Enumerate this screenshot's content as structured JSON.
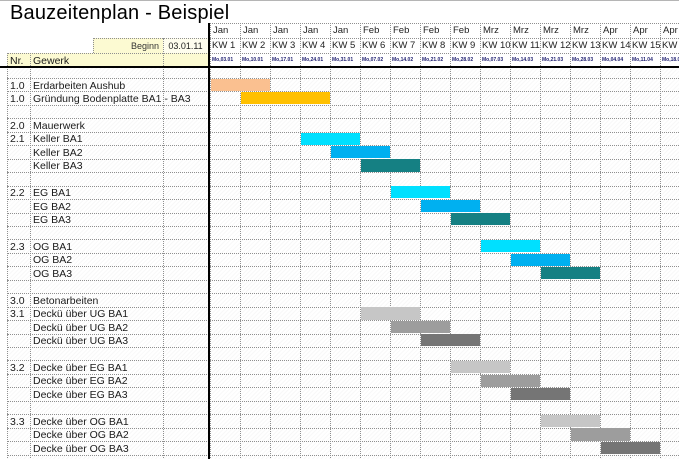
{
  "title": "Bauzeitenplan - Beispiel",
  "begin": {
    "label": "Beginn",
    "value": "03.01.11"
  },
  "table_header": {
    "nr": "Nr.",
    "gewerk": "Gewerk"
  },
  "colors": {
    "header_fill": "#FCFAD2",
    "begin_value_fill": "#FEFDEE",
    "bar_peach": "#FAC090",
    "bar_gold": "#FFC000",
    "bar_cyan": "#00E0FF",
    "bar_blue": "#00B0F0",
    "bar_teal": "#158083",
    "bar_gray_light": "#C6C6C6",
    "bar_gray_mid": "#9D9D9D",
    "bar_gray_dark": "#757575"
  },
  "chart_data": {
    "type": "gantt",
    "title": "Bauzeitenplan - Beispiel",
    "start_date": "03.01.11",
    "time_axis": {
      "unit": "Kalenderwoche",
      "columns": [
        {
          "month": "Jan",
          "week": "KW 1",
          "start": "Mo,03.01"
        },
        {
          "month": "Jan",
          "week": "KW 2",
          "start": "Mo,10.01"
        },
        {
          "month": "Jan",
          "week": "KW 3",
          "start": "Mo,17.01"
        },
        {
          "month": "Jan",
          "week": "KW 4",
          "start": "Mo,24.01"
        },
        {
          "month": "Jan",
          "week": "KW 5",
          "start": "Mo,31.01"
        },
        {
          "month": "Feb",
          "week": "KW 6",
          "start": "Mo,07.02"
        },
        {
          "month": "Feb",
          "week": "KW 7",
          "start": "Mo,14.02"
        },
        {
          "month": "Feb",
          "week": "KW 8",
          "start": "Mo,21.02"
        },
        {
          "month": "Feb",
          "week": "KW 9",
          "start": "Mo,28.02"
        },
        {
          "month": "Mrz",
          "week": "KW 10",
          "start": "Mo,07.03"
        },
        {
          "month": "Mrz",
          "week": "KW 11",
          "start": "Mo,14.03"
        },
        {
          "month": "Mrz",
          "week": "KW 12",
          "start": "Mo,21.03"
        },
        {
          "month": "Mrz",
          "week": "KW 13",
          "start": "Mo,28.03"
        },
        {
          "month": "Apr",
          "week": "KW 14",
          "start": "Mo,04.04"
        },
        {
          "month": "Apr",
          "week": "KW 15",
          "start": "Mo,11.04"
        },
        {
          "month": "Apr",
          "week": "KW 16",
          "start": "Mo,18.04"
        }
      ]
    },
    "rows": [
      {
        "nr": "1.0",
        "name": "Erdarbeiten Aushub",
        "bar": {
          "from_week": 1,
          "to_week": 2,
          "color": "bar_peach"
        }
      },
      {
        "nr": "1.0",
        "name": "Gründung Bodenplatte BA1 - BA3",
        "bar": {
          "from_week": 2,
          "to_week": 4,
          "color": "bar_gold"
        }
      },
      {
        "nr": "",
        "name": ""
      },
      {
        "nr": "2.0",
        "name": "Mauerwerk"
      },
      {
        "nr": "2.1",
        "name": "Keller BA1",
        "bar": {
          "from_week": 4,
          "to_week": 5,
          "color": "bar_cyan"
        }
      },
      {
        "nr": "",
        "name": "Keller BA2",
        "bar": {
          "from_week": 5,
          "to_week": 6,
          "color": "bar_blue"
        }
      },
      {
        "nr": "",
        "name": "Keller BA3",
        "bar": {
          "from_week": 6,
          "to_week": 7,
          "color": "bar_teal"
        }
      },
      {
        "nr": "",
        "name": ""
      },
      {
        "nr": "2.2",
        "name": "EG BA1",
        "bar": {
          "from_week": 7,
          "to_week": 8,
          "color": "bar_cyan"
        }
      },
      {
        "nr": "",
        "name": "EG BA2",
        "bar": {
          "from_week": 8,
          "to_week": 9,
          "color": "bar_blue"
        }
      },
      {
        "nr": "",
        "name": "EG BA3",
        "bar": {
          "from_week": 9,
          "to_week": 10,
          "color": "bar_teal"
        }
      },
      {
        "nr": "",
        "name": ""
      },
      {
        "nr": "2.3",
        "name": "OG BA1",
        "bar": {
          "from_week": 10,
          "to_week": 11,
          "color": "bar_cyan"
        }
      },
      {
        "nr": "",
        "name": "OG BA2",
        "bar": {
          "from_week": 11,
          "to_week": 12,
          "color": "bar_blue"
        }
      },
      {
        "nr": "",
        "name": "OG BA3",
        "bar": {
          "from_week": 12,
          "to_week": 13,
          "color": "bar_teal"
        }
      },
      {
        "nr": "",
        "name": ""
      },
      {
        "nr": "3.0",
        "name": "Betonarbeiten"
      },
      {
        "nr": "3.1",
        "name": "Deckü über UG BA1",
        "bar": {
          "from_week": 6,
          "to_week": 7,
          "color": "bar_gray_light"
        }
      },
      {
        "nr": "",
        "name": "Deckü über UG BA2",
        "bar": {
          "from_week": 7,
          "to_week": 8,
          "color": "bar_gray_mid"
        }
      },
      {
        "nr": "",
        "name": "Deckü über UG BA3",
        "bar": {
          "from_week": 8,
          "to_week": 9,
          "color": "bar_gray_dark"
        }
      },
      {
        "nr": "",
        "name": ""
      },
      {
        "nr": "3.2",
        "name": "Decke über EG BA1",
        "bar": {
          "from_week": 9,
          "to_week": 10,
          "color": "bar_gray_light"
        }
      },
      {
        "nr": "",
        "name": "Decke über EG BA2",
        "bar": {
          "from_week": 10,
          "to_week": 11,
          "color": "bar_gray_mid"
        }
      },
      {
        "nr": "",
        "name": "Decke über EG BA3",
        "bar": {
          "from_week": 11,
          "to_week": 12,
          "color": "bar_gray_dark"
        }
      },
      {
        "nr": "",
        "name": ""
      },
      {
        "nr": "3.3",
        "name": "Decke über OG BA1",
        "bar": {
          "from_week": 12,
          "to_week": 13,
          "color": "bar_gray_light"
        }
      },
      {
        "nr": "",
        "name": "Decke über OG BA2",
        "bar": {
          "from_week": 13,
          "to_week": 14,
          "color": "bar_gray_mid"
        }
      },
      {
        "nr": "",
        "name": "Decke über OG BA3",
        "bar": {
          "from_week": 14,
          "to_week": 15,
          "color": "bar_gray_dark"
        }
      },
      {
        "nr": "",
        "name": ""
      }
    ]
  }
}
